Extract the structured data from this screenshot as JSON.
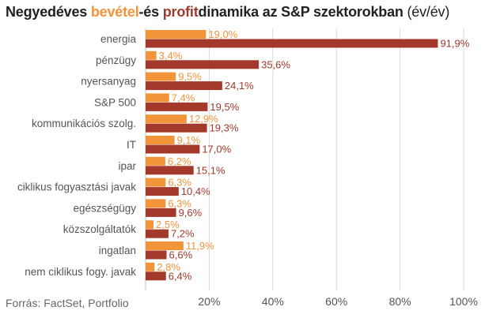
{
  "title": {
    "prefix": "Negyedéves ",
    "revenue_word": "bevétel",
    "joiner": "-és ",
    "profit_word": "profit",
    "rest": "dinamika az S&P szektorokban",
    "unit": " (év/év)"
  },
  "source": "Forrás: FactSet, Portfolio",
  "colors": {
    "revenue": "#f2943a",
    "profit": "#a3392a",
    "grid": "#d9d9d9",
    "label": "#555555"
  },
  "chart_data": {
    "type": "bar",
    "orientation": "horizontal",
    "categories": [
      "energia",
      "pénzügy",
      "nyersanyag",
      "S&P 500",
      "kommunikációs szolg.",
      "IT",
      "ipar",
      "ciklikus fogyasztási javak",
      "egészségügy",
      "közszolgáltatók",
      "ingatlan",
      "nem ciklikus fogy. javak"
    ],
    "series": [
      {
        "name": "bevétel",
        "color": "#f2943a",
        "values": [
          19.0,
          3.4,
          9.5,
          7.4,
          12.9,
          9.1,
          6.2,
          6.3,
          6.3,
          2.5,
          11.9,
          2.8
        ],
        "labels": [
          "19,0%",
          "3,4%",
          "9,5%",
          "7,4%",
          "12,9%",
          "9,1%",
          "6,2%",
          "6,3%",
          "6,3%",
          "2,5%",
          "11,9%",
          "2,8%"
        ]
      },
      {
        "name": "profit",
        "color": "#a3392a",
        "values": [
          91.9,
          35.6,
          24.1,
          19.5,
          19.3,
          17.0,
          15.1,
          10.4,
          9.6,
          7.2,
          6.6,
          6.4
        ],
        "labels": [
          "91,9%",
          "35,6%",
          "24,1%",
          "19,5%",
          "19,3%",
          "17,0%",
          "15,1%",
          "10,4%",
          "9,6%",
          "7,2%",
          "6,6%",
          "6,4%"
        ]
      }
    ],
    "xlim": [
      0,
      100
    ],
    "xticks": [
      20,
      40,
      60,
      80,
      100
    ],
    "xtick_labels": [
      "20%",
      "40%",
      "60%",
      "80%",
      "100%"
    ],
    "grid": true
  }
}
